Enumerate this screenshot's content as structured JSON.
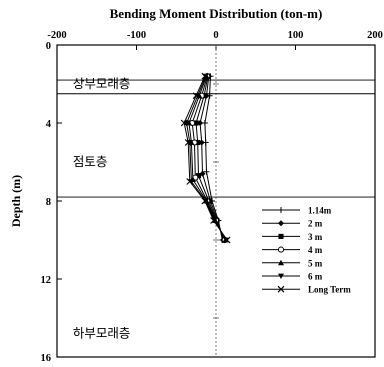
{
  "chart_data": {
    "type": "line",
    "title": "Bending Moment Distribution (ton-m)",
    "ylabel": "Depth (m)",
    "xlim": [
      -200,
      200
    ],
    "ylim": [
      16,
      0
    ],
    "x_axis_position": "top",
    "x_ticks": [
      -200,
      -100,
      0,
      100,
      200
    ],
    "y_ticks": [
      0,
      4,
      8,
      12,
      16
    ],
    "grid": false,
    "layer_boundaries": [
      1.8,
      2.5,
      7.8
    ],
    "layer_labels": [
      {
        "text": "상부모래층",
        "depth": 2.0,
        "x": -180
      },
      {
        "text": "점토층",
        "depth": 6.0,
        "x": -180
      },
      {
        "text": "하부모래층",
        "depth": 14.8,
        "x": -180
      }
    ],
    "legend_position": "lower-right",
    "series": [
      {
        "name": "1.14m",
        "marker": "plus",
        "points": [
          [
            -7,
            1.6
          ],
          [
            -8,
            2.6
          ],
          [
            -14,
            4
          ],
          [
            -13,
            5
          ],
          [
            -12,
            6.5
          ],
          [
            -5,
            8
          ],
          [
            3,
            9
          ],
          [
            8,
            10
          ]
        ]
      },
      {
        "name": "2 m",
        "marker": "diamond",
        "points": [
          [
            -9,
            1.6
          ],
          [
            -12,
            2.6
          ],
          [
            -20,
            4
          ],
          [
            -18,
            5
          ],
          [
            -17,
            6.6
          ],
          [
            -7,
            8
          ],
          [
            2,
            9
          ],
          [
            9,
            10
          ]
        ]
      },
      {
        "name": "3 m",
        "marker": "square",
        "points": [
          [
            -10,
            1.6
          ],
          [
            -15,
            2.6
          ],
          [
            -25,
            4
          ],
          [
            -23,
            5
          ],
          [
            -22,
            6.7
          ],
          [
            -9,
            8
          ],
          [
            1,
            9
          ],
          [
            10,
            10
          ]
        ]
      },
      {
        "name": "4 m",
        "marker": "circle",
        "points": [
          [
            -11,
            1.6
          ],
          [
            -18,
            2.6
          ],
          [
            -30,
            4
          ],
          [
            -27,
            5
          ],
          [
            -26,
            6.8
          ],
          [
            -11,
            8
          ],
          [
            0,
            9
          ],
          [
            11,
            10
          ]
        ]
      },
      {
        "name": "5 m",
        "marker": "triangle",
        "points": [
          [
            -12,
            1.6
          ],
          [
            -21,
            2.6
          ],
          [
            -34,
            4
          ],
          [
            -31,
            5
          ],
          [
            -29,
            6.9
          ],
          [
            -12,
            8
          ],
          [
            -1,
            9
          ],
          [
            12,
            10
          ]
        ]
      },
      {
        "name": "6 m",
        "marker": "triangle-down",
        "points": [
          [
            -13,
            1.6
          ],
          [
            -23,
            2.6
          ],
          [
            -37,
            4
          ],
          [
            -33,
            5
          ],
          [
            -31,
            7.0
          ],
          [
            -13,
            8
          ],
          [
            -2,
            9
          ],
          [
            13,
            10
          ]
        ]
      },
      {
        "name": "Long Term",
        "marker": "x",
        "points": [
          [
            -14,
            1.6
          ],
          [
            -25,
            2.6
          ],
          [
            -40,
            4
          ],
          [
            -35,
            5
          ],
          [
            -33,
            7.0
          ],
          [
            -14,
            8
          ],
          [
            -3,
            9
          ],
          [
            14,
            10
          ]
        ]
      }
    ]
  }
}
